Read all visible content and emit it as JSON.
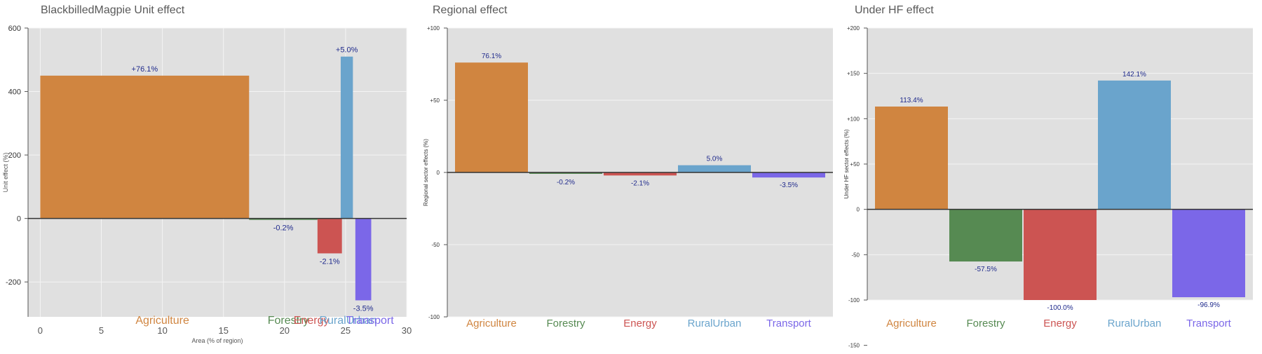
{
  "colors": {
    "plot_bg": "#e0e0e0",
    "grid": "#f4f4f4",
    "zero_line": "#333333",
    "label": "#1f2a8c",
    "Agriculture": "#d08540",
    "Forestry": "#568a52",
    "Energy": "#cc5452",
    "RuralUrban": "#6aa4cc",
    "Transport": "#7b67e8"
  },
  "chart_data": [
    {
      "type": "bar",
      "title": "BlackbilledMagpie Unit effect",
      "xlabel": "Area (% of region)",
      "ylabel": "Unit effect (%)",
      "xlim": [
        -1,
        30
      ],
      "ylim": [
        -310,
        600
      ],
      "xticks": [
        "0",
        "5",
        "10",
        "15",
        "20",
        "25",
        "30"
      ],
      "yticks": [
        "600",
        "400",
        "200",
        "0",
        "-200"
      ],
      "categories": [
        "Agriculture",
        "Forestry",
        "Energy",
        "RuralUrban",
        "Transport"
      ],
      "x_start": [
        0,
        17.1,
        22.7,
        24.6,
        25.8
      ],
      "x_end": [
        17.1,
        22.7,
        24.7,
        25.6,
        27.1
      ],
      "values": [
        450,
        -3,
        -110,
        510,
        -258
      ],
      "labels": [
        "+76.1%",
        "-0.2%",
        "-2.1%",
        "+5.0%",
        "-3.5%"
      ],
      "category_label_x": [
        10,
        20.3,
        22.2,
        25.2,
        27
      ]
    },
    {
      "type": "bar",
      "title": "Regional effect",
      "ylabel": "Regional sector effects (%)",
      "ylim": [
        -100,
        100
      ],
      "yticks": [
        "+100",
        "+50",
        "0",
        "-50",
        "-100"
      ],
      "categories": [
        "Agriculture",
        "Forestry",
        "Energy",
        "RuralUrban",
        "Transport"
      ],
      "values": [
        76.1,
        -0.2,
        -2.1,
        5.0,
        -3.5
      ],
      "labels": [
        "76.1%",
        "-0.2%",
        "-2.1%",
        "5.0%",
        "-3.5%"
      ]
    },
    {
      "type": "bar",
      "title": "Under HF effect",
      "ylabel": "Under HF sector effects (%)",
      "ylim": [
        -100,
        200
      ],
      "yticks": [
        "+200",
        "+150",
        "+100",
        "+50",
        "0",
        "-50",
        "-100",
        "-150"
      ],
      "categories": [
        "Agriculture",
        "Forestry",
        "Energy",
        "RuralUrban",
        "Transport"
      ],
      "values": [
        113.4,
        -57.5,
        -100.0,
        142.1,
        -96.9
      ],
      "labels": [
        "113.4%",
        "-57.5%",
        "-100.0%",
        "142.1%",
        "-96.9%"
      ]
    }
  ]
}
